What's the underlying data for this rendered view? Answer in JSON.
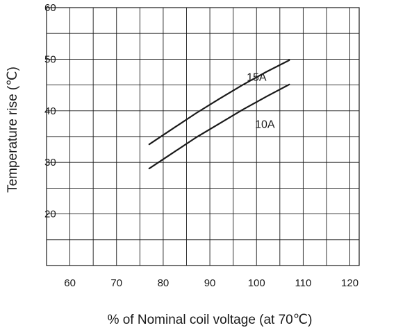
{
  "chart_data": {
    "type": "line",
    "title": "",
    "xlabel": "% of Nominal coil voltage (at 70℃)",
    "ylabel": "Temperature rise (℃)",
    "xlim": [
      55,
      122
    ],
    "ylim": [
      10,
      60
    ],
    "x_ticks": [
      60,
      70,
      80,
      90,
      100,
      110,
      120
    ],
    "y_ticks": [
      20,
      30,
      40,
      50,
      60
    ],
    "x_tick_labels": [
      "60",
      "70",
      "80",
      "90",
      "100",
      "110",
      "120"
    ],
    "y_tick_labels": [
      "20",
      "30",
      "40",
      "50",
      "60"
    ],
    "grid": true,
    "grid_x_step": 5,
    "grid_y_step": 5,
    "series": [
      {
        "name": "15A",
        "x": [
          77,
          82,
          87,
          92,
          97,
          102,
          107
        ],
        "y": [
          33.5,
          36.5,
          39.5,
          42.3,
          45,
          47.5,
          49.8
        ]
      },
      {
        "name": "10A",
        "x": [
          77,
          82,
          87,
          92,
          97,
          102,
          107
        ],
        "y": [
          28.8,
          31.8,
          34.8,
          37.5,
          40.2,
          42.7,
          45.1
        ]
      }
    ]
  }
}
